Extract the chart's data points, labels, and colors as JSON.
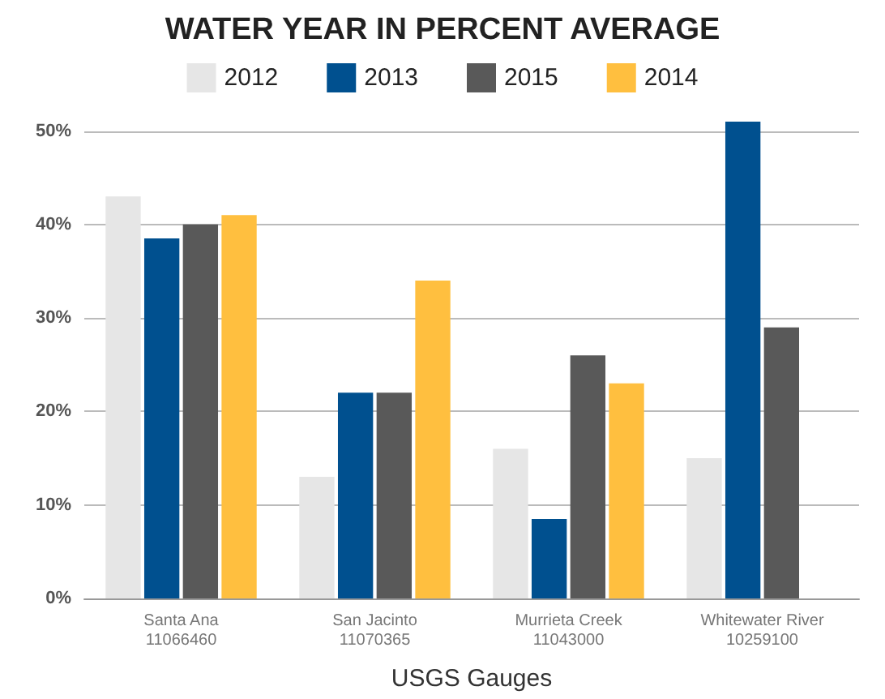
{
  "chart_data": {
    "type": "bar",
    "title": "WATER YEAR IN PERCENT AVERAGE",
    "xlabel": "USGS Gauges",
    "categories": [
      "Santa Ana\n11066460",
      "San Jacinto\n11070365",
      "Murrieta Creek\n11043000",
      "Whitewater River\n10259100"
    ],
    "series": [
      {
        "name": "2012",
        "color": "#e6e6e6",
        "values": [
          43,
          13,
          16,
          15
        ]
      },
      {
        "name": "2013",
        "color": "#00508f",
        "values": [
          38.5,
          22,
          8.5,
          51
        ]
      },
      {
        "name": "2015",
        "color": "#595959",
        "values": [
          40,
          22,
          26,
          29
        ]
      },
      {
        "name": "2014",
        "color": "#ffbf3f",
        "values": [
          41,
          34,
          23,
          null
        ]
      }
    ],
    "ylim": [
      0,
      51
    ],
    "yticks": [
      {
        "value": 0,
        "label": "0%"
      },
      {
        "value": 10,
        "label": "10%"
      },
      {
        "value": 20,
        "label": "20%"
      },
      {
        "value": 30,
        "label": "30%"
      },
      {
        "value": 40,
        "label": "40%"
      },
      {
        "value": 50,
        "label": "50%"
      }
    ],
    "grid": "y",
    "legend": "top"
  }
}
